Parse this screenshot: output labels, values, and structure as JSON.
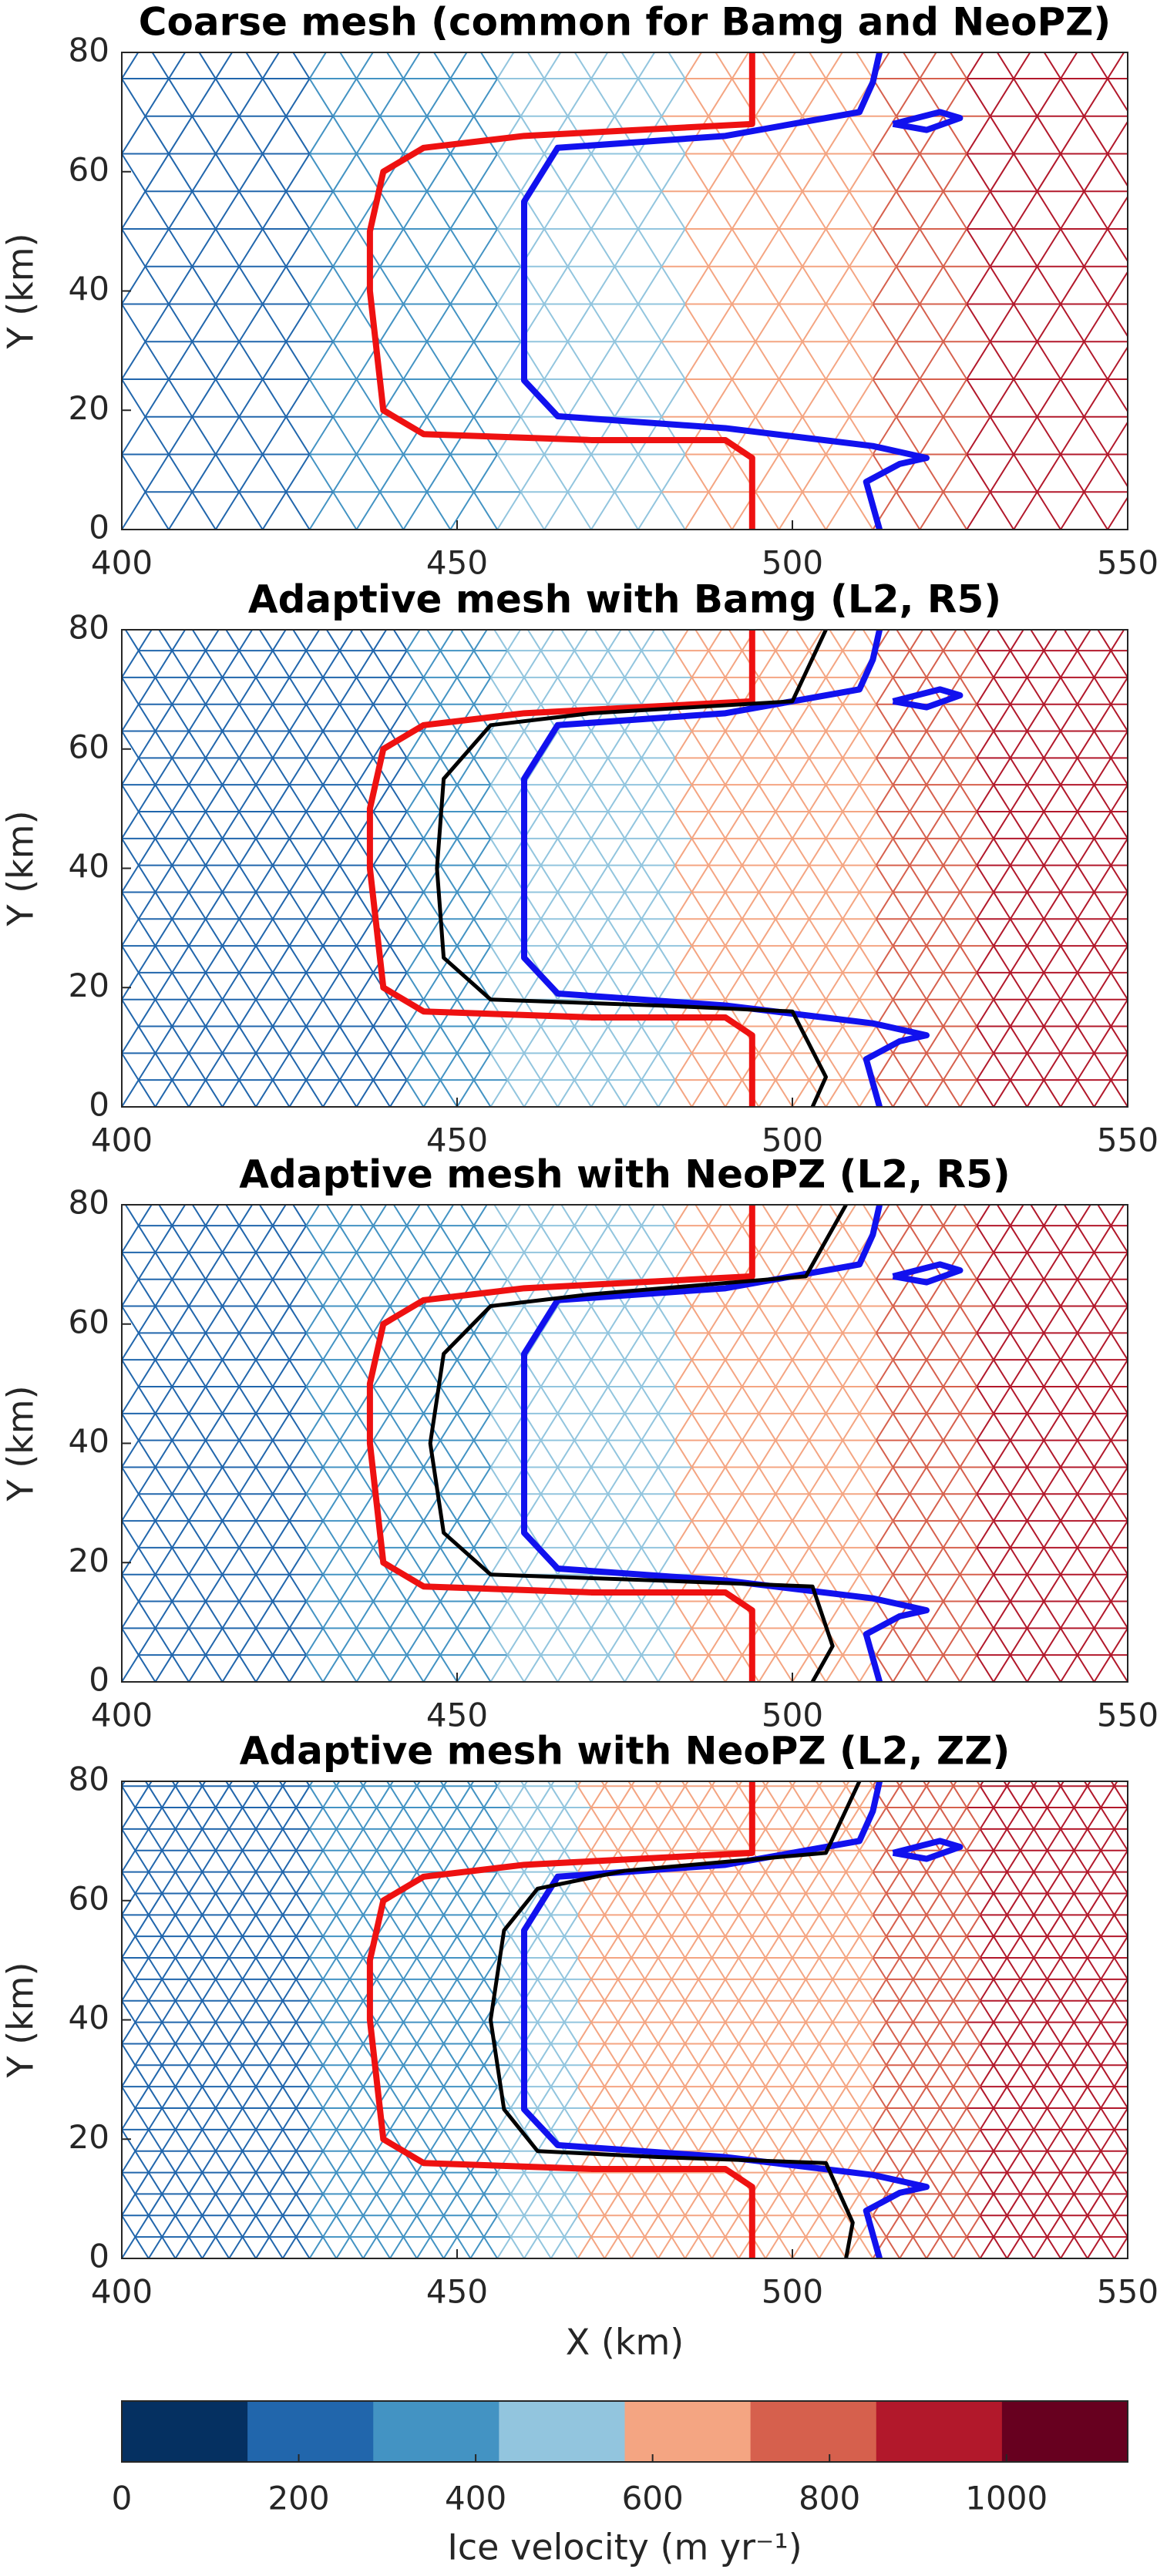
{
  "chart_data": [
    {
      "type": "mesh",
      "title": "Coarse mesh (common for Bamg and NeoPZ)",
      "ylabel": "Y (km)",
      "xlim": [
        400,
        550
      ],
      "ylim": [
        0,
        80
      ],
      "xticks": [
        400,
        450,
        500,
        550
      ],
      "yticks": [
        0,
        20,
        40,
        60,
        80
      ],
      "mesh_step": 7,
      "field": {
        "x": [
          400,
          420,
          437,
          450,
          462,
          475,
          490,
          505,
          520,
          535,
          550
        ],
        "values": [
          180,
          230,
          300,
          380,
          470,
          560,
          620,
          660,
          740,
          860,
          950
        ]
      },
      "series": [
        {
          "color": "#ee1111",
          "x": [
            494,
            494,
            460,
            445,
            439,
            437,
            437,
            439,
            445,
            470,
            490,
            494,
            494
          ],
          "values": [
            80,
            68,
            66,
            64,
            60,
            50,
            40,
            20,
            16,
            15,
            15,
            12,
            0
          ]
        },
        {
          "color": "#1111ee",
          "x": [
            513,
            512,
            510,
            490,
            465,
            460,
            460,
            460,
            465,
            490,
            512,
            520,
            516,
            511,
            513
          ],
          "values": [
            80,
            75,
            70,
            66,
            64,
            55,
            40,
            25,
            19,
            17,
            14,
            12,
            11,
            8,
            0
          ]
        },
        {
          "color": "#1111ee",
          "x": [
            515,
            522,
            525,
            520,
            515
          ],
          "values": [
            68,
            70,
            69,
            67,
            68
          ]
        }
      ]
    },
    {
      "type": "mesh",
      "title": "Adaptive mesh with Bamg (L2, R5)",
      "ylabel": "Y (km)",
      "xlim": [
        400,
        550
      ],
      "ylim": [
        0,
        80
      ],
      "xticks": [
        400,
        450,
        500,
        550
      ],
      "yticks": [
        0,
        20,
        40,
        60,
        80
      ],
      "mesh_step": 5,
      "field": {
        "x": [
          400,
          420,
          437,
          450,
          462,
          475,
          490,
          505,
          520,
          535,
          550
        ],
        "values": [
          160,
          210,
          280,
          360,
          460,
          560,
          620,
          660,
          740,
          860,
          950
        ]
      },
      "series": [
        {
          "color": "#ee1111",
          "x": [
            494,
            494,
            460,
            445,
            439,
            437,
            437,
            439,
            445,
            470,
            490,
            494,
            494
          ],
          "values": [
            80,
            68,
            66,
            64,
            60,
            50,
            40,
            20,
            16,
            15,
            15,
            12,
            0
          ]
        },
        {
          "color": "#1111ee",
          "x": [
            513,
            512,
            510,
            490,
            465,
            460,
            460,
            460,
            465,
            490,
            512,
            520,
            516,
            511,
            513
          ],
          "values": [
            80,
            75,
            70,
            66,
            64,
            55,
            40,
            25,
            19,
            17,
            14,
            12,
            11,
            8,
            0
          ]
        },
        {
          "color": "#1111ee",
          "x": [
            515,
            522,
            525,
            520,
            515
          ],
          "values": [
            68,
            70,
            69,
            67,
            68
          ]
        },
        {
          "color": "#000000",
          "x": [
            505,
            500,
            470,
            455,
            448,
            447,
            448,
            455,
            480,
            500,
            505,
            503
          ],
          "values": [
            80,
            68,
            66,
            64,
            55,
            40,
            25,
            18,
            17,
            16,
            5,
            0
          ]
        }
      ]
    },
    {
      "type": "mesh",
      "title": "Adaptive mesh with NeoPZ (L2, R5)",
      "ylabel": "Y (km)",
      "xlim": [
        400,
        550
      ],
      "ylim": [
        0,
        80
      ],
      "xticks": [
        400,
        450,
        500,
        550
      ],
      "yticks": [
        0,
        20,
        40,
        60,
        80
      ],
      "mesh_step": 5,
      "field": {
        "x": [
          400,
          420,
          437,
          450,
          462,
          475,
          490,
          505,
          520,
          535,
          550
        ],
        "values": [
          160,
          220,
          300,
          370,
          460,
          560,
          620,
          660,
          760,
          870,
          960
        ]
      },
      "series": [
        {
          "color": "#ee1111",
          "x": [
            494,
            494,
            460,
            445,
            439,
            437,
            437,
            439,
            445,
            470,
            490,
            494,
            494
          ],
          "values": [
            80,
            68,
            66,
            64,
            60,
            50,
            40,
            20,
            16,
            15,
            15,
            12,
            0
          ]
        },
        {
          "color": "#1111ee",
          "x": [
            513,
            512,
            510,
            490,
            465,
            460,
            460,
            460,
            465,
            490,
            512,
            520,
            516,
            511,
            513
          ],
          "values": [
            80,
            75,
            70,
            66,
            64,
            55,
            40,
            25,
            19,
            17,
            14,
            12,
            11,
            8,
            0
          ]
        },
        {
          "color": "#1111ee",
          "x": [
            515,
            522,
            525,
            520,
            515
          ],
          "values": [
            68,
            70,
            69,
            67,
            68
          ]
        },
        {
          "color": "#000000",
          "x": [
            508,
            502,
            470,
            455,
            448,
            446,
            448,
            455,
            480,
            503,
            506,
            503
          ],
          "values": [
            80,
            68,
            65,
            63,
            55,
            40,
            25,
            18,
            17,
            16,
            6,
            0
          ]
        }
      ]
    },
    {
      "type": "mesh",
      "title": "Adaptive mesh with NeoPZ (L2, ZZ)",
      "ylabel": "Y (km)",
      "xlabel": "X (km)",
      "xlim": [
        400,
        550
      ],
      "ylim": [
        0,
        80
      ],
      "xticks": [
        400,
        450,
        500,
        550
      ],
      "yticks": [
        0,
        20,
        40,
        60,
        80
      ],
      "mesh_step": 4,
      "field": {
        "x": [
          400,
          420,
          437,
          450,
          462,
          475,
          490,
          505,
          520,
          535,
          550
        ],
        "values": [
          150,
          230,
          300,
          380,
          470,
          580,
          640,
          690,
          780,
          880,
          980
        ]
      },
      "series": [
        {
          "color": "#ee1111",
          "x": [
            494,
            494,
            460,
            445,
            439,
            437,
            437,
            439,
            445,
            470,
            490,
            494,
            494
          ],
          "values": [
            80,
            68,
            66,
            64,
            60,
            50,
            40,
            20,
            16,
            15,
            15,
            12,
            0
          ]
        },
        {
          "color": "#1111ee",
          "x": [
            513,
            512,
            510,
            490,
            465,
            460,
            460,
            460,
            465,
            490,
            512,
            520,
            516,
            511,
            513
          ],
          "values": [
            80,
            75,
            70,
            66,
            64,
            55,
            40,
            25,
            19,
            17,
            14,
            12,
            11,
            8,
            0
          ]
        },
        {
          "color": "#1111ee",
          "x": [
            515,
            522,
            525,
            520,
            515
          ],
          "values": [
            68,
            70,
            69,
            67,
            68
          ]
        },
        {
          "color": "#000000",
          "x": [
            510,
            505,
            475,
            462,
            457,
            455,
            457,
            462,
            480,
            505,
            509,
            508
          ],
          "values": [
            80,
            68,
            65,
            62,
            55,
            40,
            25,
            18,
            17,
            16,
            6,
            0
          ]
        }
      ]
    },
    {
      "type": "colorbar",
      "label": "Ice velocity (m yr⁻¹)",
      "clim": [
        0,
        1137
      ],
      "ticks": [
        0,
        200,
        400,
        600,
        800,
        1000
      ],
      "colors": [
        "#053061",
        "#2166ac",
        "#4393c3",
        "#92c5de",
        "#f4a582",
        "#d6604d",
        "#b2182b",
        "#67001f"
      ]
    }
  ]
}
